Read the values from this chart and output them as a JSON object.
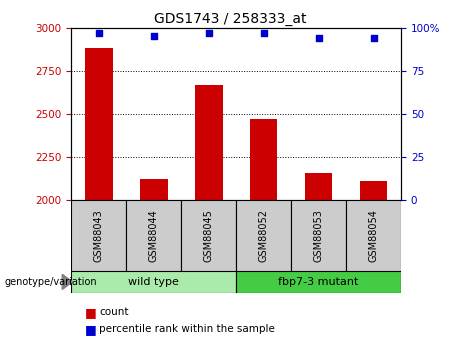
{
  "title": "GDS1743 / 258333_at",
  "samples": [
    "GSM88043",
    "GSM88044",
    "GSM88045",
    "GSM88052",
    "GSM88053",
    "GSM88054"
  ],
  "counts": [
    2880,
    2120,
    2670,
    2470,
    2155,
    2110
  ],
  "percentile_ranks": [
    97,
    95,
    97,
    97,
    94,
    94
  ],
  "ylim_left": [
    2000,
    3000
  ],
  "ylim_right": [
    0,
    100
  ],
  "yticks_left": [
    2000,
    2250,
    2500,
    2750,
    3000
  ],
  "yticks_right": [
    0,
    25,
    50,
    75,
    100
  ],
  "bar_color": "#CC0000",
  "dot_color": "#0000CC",
  "background_color": "#FFFFFF",
  "tick_label_color_left": "#CC0000",
  "tick_label_color_right": "#0000CC",
  "bar_width": 0.5,
  "group_label": "genotype/variation",
  "group_spans": [
    {
      "start": 0,
      "end": 2,
      "label": "wild type",
      "color": "#AAEAAA"
    },
    {
      "start": 3,
      "end": 5,
      "label": "fbp7-3 mutant",
      "color": "#44CC44"
    }
  ],
  "sample_box_color": "#CCCCCC",
  "legend_items": [
    {
      "color": "#CC0000",
      "label": "count"
    },
    {
      "color": "#0000CC",
      "label": "percentile rank within the sample"
    }
  ]
}
